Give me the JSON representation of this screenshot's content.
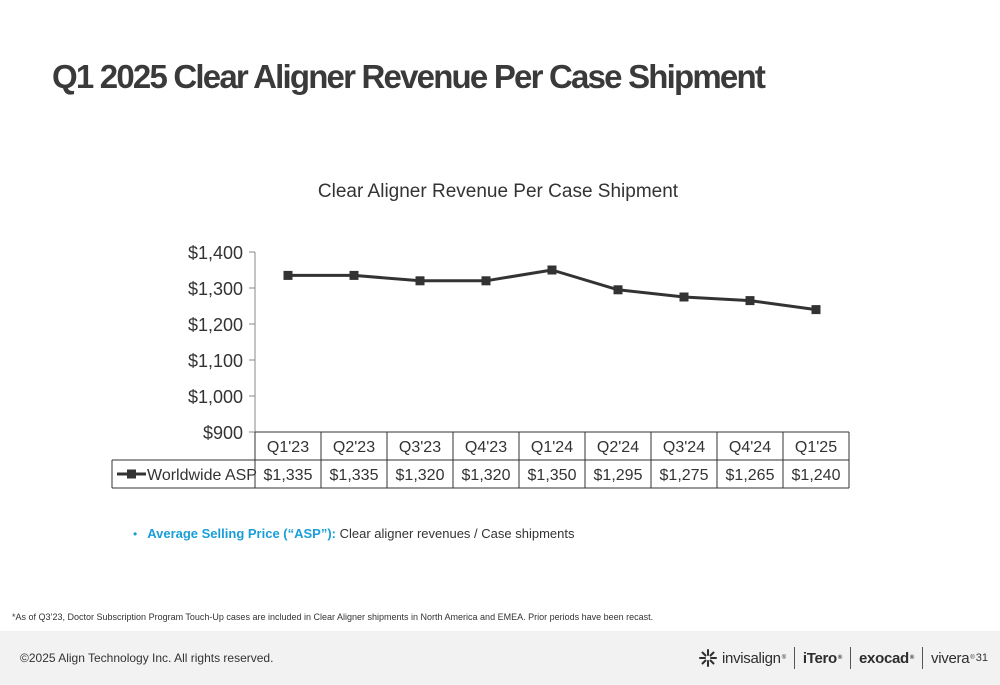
{
  "slide": {
    "title": "Q1 2025 Clear Aligner Revenue Per Case Shipment"
  },
  "chart_data": {
    "type": "line",
    "title": "Clear Aligner Revenue Per Case Shipment",
    "categories": [
      "Q1'23",
      "Q2'23",
      "Q3'23",
      "Q4'23",
      "Q1'24",
      "Q2'24",
      "Q3'24",
      "Q4'24",
      "Q1'25"
    ],
    "series": [
      {
        "name": "Worldwide ASP",
        "values": [
          1335,
          1335,
          1320,
          1320,
          1350,
          1295,
          1275,
          1265,
          1240
        ],
        "labels": [
          "$1,335",
          "$1,335",
          "$1,320",
          "$1,320",
          "$1,350",
          "$1,295",
          "$1,275",
          "$1,265",
          "$1,240"
        ],
        "color": "#333333",
        "marker": "square"
      }
    ],
    "ylim": [
      900,
      1400
    ],
    "yticks": [
      900,
      1000,
      1100,
      1200,
      1300,
      1400
    ],
    "ytick_labels": [
      "$900",
      "$1,000",
      "$1,100",
      "$1,200",
      "$1,300",
      "$1,400"
    ],
    "xlabel": "",
    "ylabel": "",
    "grid": false,
    "legend": "data-table",
    "data_table": true
  },
  "note": {
    "term": "Average Selling Price (“ASP”):",
    "definition": " Clear aligner revenues / Case shipments"
  },
  "footnote": "*As of Q3’23, Doctor Subscription Program Touch-Up cases are included in Clear Aligner shipments in North America and EMEA. Prior periods have been recast.",
  "footer": {
    "copyright": "©2025 Align Technology Inc. All rights reserved.",
    "brands": [
      "invisalign",
      "iTero",
      "exocad",
      "vivera"
    ],
    "page_number": "31"
  },
  "colors": {
    "accent": "#1a9ed8",
    "line": "#333333",
    "footer_bg": "#f2f2f2"
  }
}
